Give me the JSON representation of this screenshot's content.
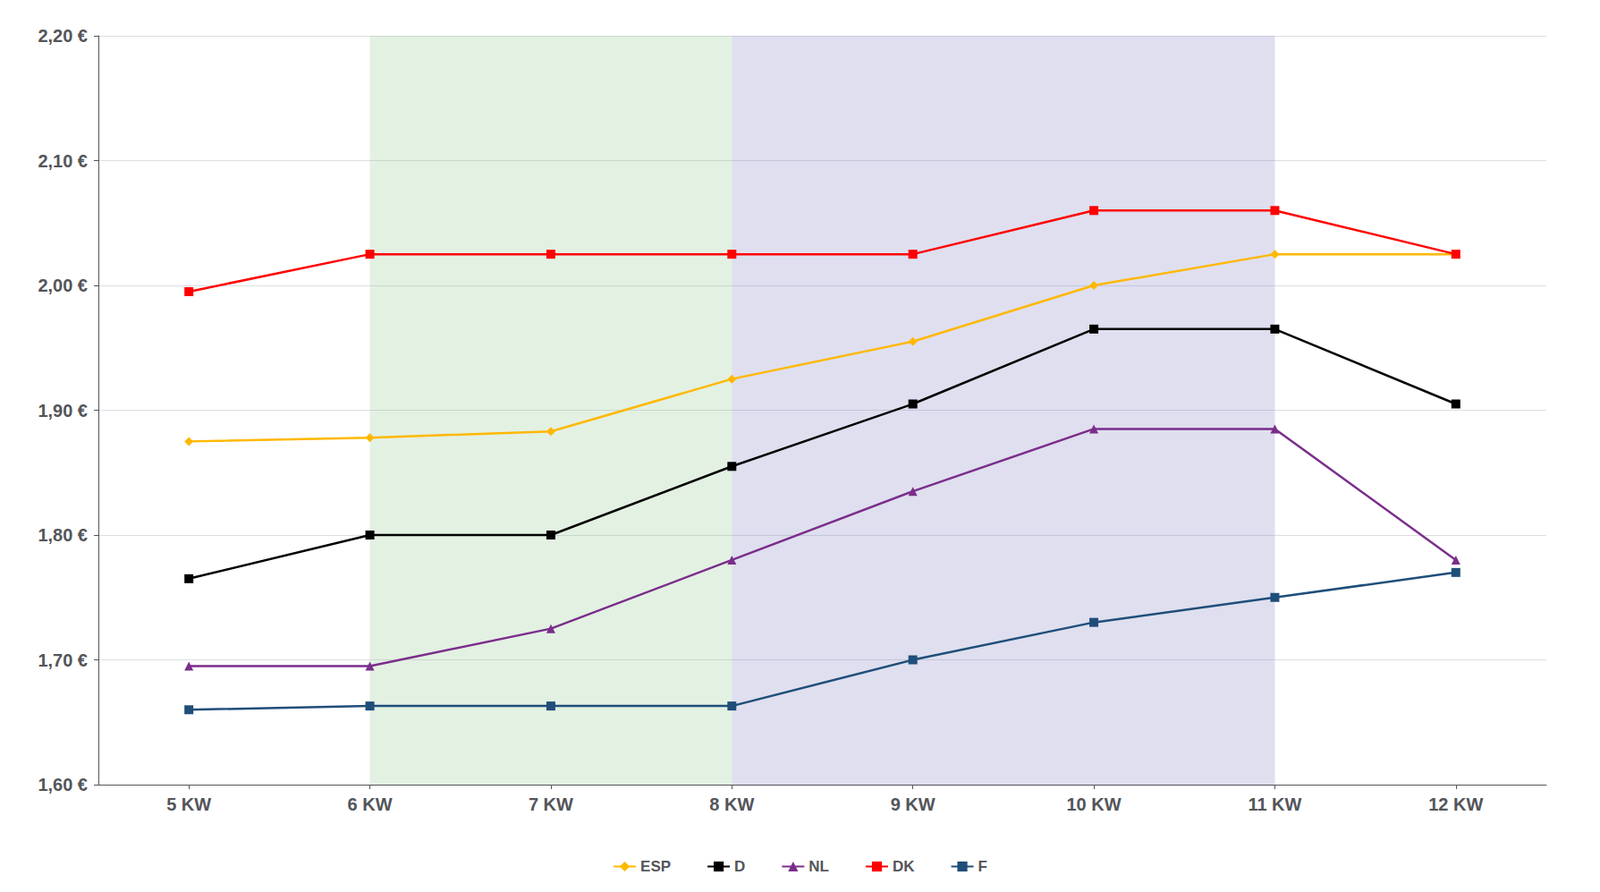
{
  "chart_data": {
    "type": "line",
    "x": [
      5,
      6,
      7,
      8,
      9,
      10,
      11,
      12
    ],
    "xlim": [
      4.5,
      12.5
    ],
    "xticks": [
      {
        "value": 5,
        "label": "5 KW"
      },
      {
        "value": 6,
        "label": "6 KW"
      },
      {
        "value": 7,
        "label": "7 KW"
      },
      {
        "value": 8,
        "label": "8 KW"
      },
      {
        "value": 9,
        "label": "9 KW"
      },
      {
        "value": 10,
        "label": "10 KW"
      },
      {
        "value": 11,
        "label": "11 KW"
      },
      {
        "value": 12,
        "label": "12 KW"
      }
    ],
    "ylim": [
      1.6,
      2.2
    ],
    "yticks": [
      {
        "value": 1.6,
        "label": "1,60 €"
      },
      {
        "value": 1.7,
        "label": "1,70 €"
      },
      {
        "value": 1.8,
        "label": "1,80 €"
      },
      {
        "value": 1.9,
        "label": "1,90 €"
      },
      {
        "value": 2.0,
        "label": "2,00 €"
      },
      {
        "value": 2.1,
        "label": "2,10 €"
      },
      {
        "value": 2.2,
        "label": "2,20 €"
      }
    ],
    "grid": true,
    "legend": "bottom",
    "shaded_ranges": [
      {
        "x": [
          6,
          8
        ],
        "color": "#90C890"
      },
      {
        "x": [
          8,
          11
        ],
        "color": "#8080C0"
      }
    ],
    "series": [
      {
        "name": "ESP",
        "color": "#FFB800",
        "marker": "diamond",
        "values": [
          1.875,
          1.878,
          1.883,
          1.925,
          1.955,
          2.0,
          2.025,
          2.025
        ]
      },
      {
        "name": "D",
        "color": "#000000",
        "marker": "square",
        "values": [
          1.765,
          1.8,
          1.8,
          1.855,
          1.905,
          1.965,
          1.965,
          1.905
        ]
      },
      {
        "name": "NL",
        "color": "#7B2D8B",
        "marker": "triangle",
        "values": [
          1.695,
          1.695,
          1.725,
          1.78,
          1.835,
          1.885,
          1.885,
          1.78
        ]
      },
      {
        "name": "DK",
        "color": "#FF0000",
        "marker": "square",
        "values": [
          1.995,
          2.025,
          2.025,
          2.025,
          2.025,
          2.06,
          2.06,
          2.025
        ]
      },
      {
        "name": "F",
        "color": "#1F4E79",
        "marker": "square",
        "values": [
          1.66,
          1.663,
          1.663,
          1.663,
          1.7,
          1.73,
          1.75,
          1.77
        ]
      }
    ]
  }
}
